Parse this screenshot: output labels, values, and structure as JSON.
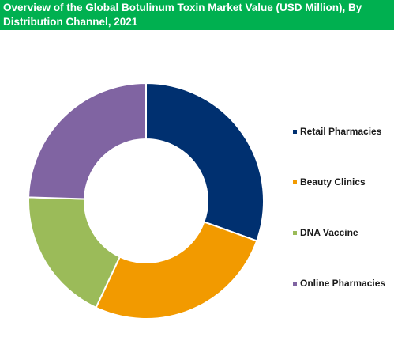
{
  "header": {
    "title": "Overview of the Global Botulinum Toxin Market Value (USD Million), By Distribution Channel, 2021"
  },
  "chart_data": {
    "type": "pie",
    "donut": true,
    "title": "Overview of the Global Botulinum Toxin Market Value (USD Million), By Distribution Channel, 2021",
    "categories": [
      "Retail Pharmacies",
      "Beauty Clinics",
      "DNA Vaccine",
      "Online Pharmacies"
    ],
    "values": [
      30.5,
      26.5,
      18.5,
      24.5
    ],
    "colors": [
      "#003070",
      "#f29a00",
      "#9bbb59",
      "#8064a2"
    ],
    "legend_position": "right"
  }
}
